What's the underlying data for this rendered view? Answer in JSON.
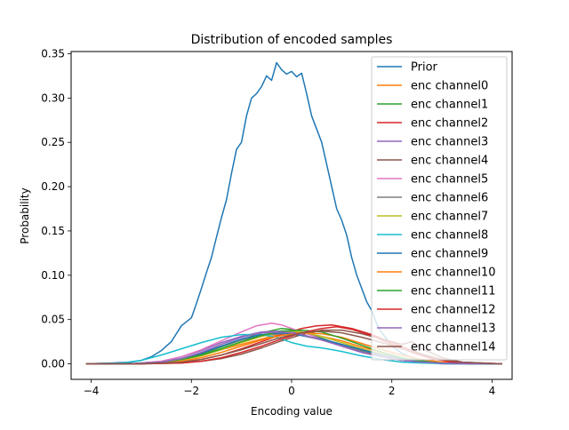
{
  "chart_data": {
    "type": "line",
    "title": "Distribution of encoded samples",
    "xlabel": "Encoding value",
    "ylabel": "Probability",
    "xlim": [
      -4.4,
      4.4
    ],
    "ylim": [
      -0.0175,
      0.3525
    ],
    "xticks": [
      -4,
      -2,
      0,
      2,
      4
    ],
    "xtick_labels": [
      "−4",
      "−2",
      "0",
      "2",
      "4"
    ],
    "yticks": [
      0.0,
      0.05,
      0.1,
      0.15,
      0.2,
      0.25,
      0.3,
      0.35
    ],
    "ytick_labels": [
      "0.00",
      "0.05",
      "0.10",
      "0.15",
      "0.20",
      "0.25",
      "0.30",
      "0.35"
    ],
    "grid": false,
    "legend_position": "upper right",
    "series": [
      {
        "name": "Prior",
        "color": "#1f77b4",
        "x": [
          -4.1,
          -3.6,
          -3.2,
          -3.0,
          -2.8,
          -2.6,
          -2.4,
          -2.2,
          -2.0,
          -1.9,
          -1.8,
          -1.7,
          -1.6,
          -1.5,
          -1.4,
          -1.3,
          -1.2,
          -1.1,
          -1.0,
          -0.9,
          -0.8,
          -0.7,
          -0.6,
          -0.5,
          -0.4,
          -0.3,
          -0.2,
          -0.1,
          0.0,
          0.1,
          0.2,
          0.3,
          0.4,
          0.5,
          0.6,
          0.7,
          0.8,
          0.9,
          1.0,
          1.1,
          1.2,
          1.3,
          1.4,
          1.5,
          1.6,
          1.7,
          1.8,
          1.9,
          2.0,
          2.2,
          2.4,
          2.6,
          2.8,
          3.0,
          3.2,
          3.6,
          4.2
        ],
        "y": [
          0.0,
          0.001,
          0.002,
          0.004,
          0.008,
          0.015,
          0.025,
          0.043,
          0.052,
          0.068,
          0.085,
          0.103,
          0.12,
          0.143,
          0.165,
          0.185,
          0.215,
          0.242,
          0.25,
          0.28,
          0.3,
          0.305,
          0.313,
          0.325,
          0.32,
          0.34,
          0.332,
          0.327,
          0.33,
          0.324,
          0.328,
          0.305,
          0.28,
          0.265,
          0.25,
          0.225,
          0.2,
          0.175,
          0.162,
          0.145,
          0.12,
          0.1,
          0.085,
          0.07,
          0.06,
          0.045,
          0.035,
          0.028,
          0.02,
          0.012,
          0.007,
          0.004,
          0.002,
          0.001,
          0.0005,
          0.0,
          0.0
        ]
      },
      {
        "name": "enc channel0",
        "color": "#ff7f0e",
        "x": [
          -4.1,
          -3.2,
          -2.6,
          -2.2,
          -1.8,
          -1.4,
          -1.0,
          -0.6,
          -0.2,
          0.0,
          0.2,
          0.6,
          1.0,
          1.4,
          1.8,
          2.2,
          2.6,
          3.0,
          3.6,
          4.2
        ],
        "y": [
          0.0,
          0.0,
          0.002,
          0.005,
          0.01,
          0.016,
          0.022,
          0.028,
          0.034,
          0.036,
          0.035,
          0.031,
          0.026,
          0.019,
          0.013,
          0.007,
          0.003,
          0.001,
          0.0,
          0.0
        ]
      },
      {
        "name": "enc channel1",
        "color": "#2ca02c",
        "x": [
          -4.1,
          -3.2,
          -2.6,
          -2.2,
          -1.8,
          -1.4,
          -1.0,
          -0.6,
          -0.2,
          0.0,
          0.2,
          0.6,
          1.0,
          1.4,
          1.8,
          2.2,
          2.6,
          3.0,
          3.6,
          4.2
        ],
        "y": [
          0.0,
          0.0,
          0.002,
          0.005,
          0.011,
          0.019,
          0.027,
          0.035,
          0.04,
          0.039,
          0.036,
          0.029,
          0.021,
          0.014,
          0.008,
          0.004,
          0.002,
          0.001,
          0.0,
          0.0
        ]
      },
      {
        "name": "enc channel2",
        "color": "#d62728",
        "x": [
          -4.1,
          -3.0,
          -2.2,
          -1.8,
          -1.4,
          -1.0,
          -0.6,
          -0.2,
          0.2,
          0.5,
          0.8,
          1.2,
          1.6,
          2.0,
          2.4,
          2.8,
          3.2,
          3.6,
          4.2
        ],
        "y": [
          0.0,
          0.0,
          0.002,
          0.005,
          0.01,
          0.017,
          0.025,
          0.033,
          0.04,
          0.043,
          0.044,
          0.04,
          0.033,
          0.024,
          0.015,
          0.007,
          0.003,
          0.001,
          0.0
        ]
      },
      {
        "name": "enc channel3",
        "color": "#9467bd",
        "x": [
          -4.1,
          -3.2,
          -2.6,
          -2.2,
          -1.8,
          -1.4,
          -1.0,
          -0.6,
          -0.2,
          0.0,
          0.2,
          0.6,
          1.0,
          1.4,
          1.8,
          2.2,
          2.6,
          3.0,
          3.6,
          4.2
        ],
        "y": [
          0.0,
          0.0,
          0.003,
          0.008,
          0.015,
          0.024,
          0.031,
          0.036,
          0.037,
          0.036,
          0.033,
          0.027,
          0.02,
          0.013,
          0.008,
          0.004,
          0.002,
          0.0,
          0.0,
          0.0
        ]
      },
      {
        "name": "enc channel4",
        "color": "#8c564b",
        "x": [
          -4.1,
          -3.0,
          -2.2,
          -1.8,
          -1.4,
          -1.0,
          -0.6,
          -0.2,
          0.2,
          0.6,
          1.0,
          1.4,
          1.8,
          2.2,
          2.4,
          2.6,
          3.0,
          3.4,
          4.2
        ],
        "y": [
          0.0,
          0.0,
          0.001,
          0.003,
          0.006,
          0.011,
          0.018,
          0.026,
          0.033,
          0.038,
          0.038,
          0.034,
          0.028,
          0.022,
          0.025,
          0.017,
          0.007,
          0.002,
          0.0
        ]
      },
      {
        "name": "enc channel5",
        "color": "#e377c2",
        "x": [
          -4.1,
          -3.2,
          -2.6,
          -2.2,
          -1.8,
          -1.4,
          -1.0,
          -0.7,
          -0.4,
          -0.2,
          0.0,
          0.3,
          0.6,
          1.0,
          1.4,
          1.8,
          2.2,
          2.6,
          3.0,
          3.6,
          4.2
        ],
        "y": [
          0.0,
          0.0,
          0.003,
          0.008,
          0.016,
          0.026,
          0.036,
          0.043,
          0.046,
          0.044,
          0.04,
          0.034,
          0.028,
          0.02,
          0.013,
          0.008,
          0.004,
          0.002,
          0.0,
          0.0,
          0.0
        ]
      },
      {
        "name": "enc channel6",
        "color": "#7f7f7f",
        "x": [
          -4.1,
          -3.2,
          -2.6,
          -2.2,
          -1.8,
          -1.4,
          -1.0,
          -0.6,
          -0.2,
          0.0,
          0.2,
          0.6,
          1.0,
          1.4,
          1.8,
          2.2,
          2.6,
          3.0,
          3.6,
          4.2
        ],
        "y": [
          0.0,
          0.0,
          0.002,
          0.006,
          0.012,
          0.02,
          0.027,
          0.032,
          0.034,
          0.034,
          0.032,
          0.027,
          0.021,
          0.015,
          0.009,
          0.005,
          0.002,
          0.001,
          0.0,
          0.0
        ]
      },
      {
        "name": "enc channel7",
        "color": "#bcbd22",
        "x": [
          -4.1,
          -3.2,
          -2.6,
          -2.2,
          -1.8,
          -1.4,
          -1.0,
          -0.6,
          -0.2,
          0.0,
          0.2,
          0.6,
          1.0,
          1.4,
          1.8,
          2.2,
          2.6,
          3.0,
          3.6,
          4.2
        ],
        "y": [
          0.0,
          0.0,
          0.001,
          0.004,
          0.009,
          0.016,
          0.024,
          0.031,
          0.036,
          0.037,
          0.036,
          0.031,
          0.024,
          0.017,
          0.011,
          0.006,
          0.003,
          0.001,
          0.0,
          0.0
        ]
      },
      {
        "name": "enc channel8",
        "color": "#17becf",
        "x": [
          -4.1,
          -3.4,
          -3.0,
          -2.6,
          -2.2,
          -1.8,
          -1.4,
          -1.0,
          -0.6,
          -0.3,
          0.0,
          0.3,
          0.6,
          1.0,
          1.4,
          1.8,
          2.2,
          2.6,
          3.2,
          4.2
        ],
        "y": [
          0.0,
          0.001,
          0.004,
          0.01,
          0.017,
          0.024,
          0.03,
          0.033,
          0.033,
          0.03,
          0.024,
          0.02,
          0.018,
          0.014,
          0.009,
          0.005,
          0.002,
          0.001,
          0.0,
          0.0
        ]
      },
      {
        "name": "enc channel9",
        "color": "#1f77b4",
        "x": [
          -4.1,
          -3.2,
          -2.6,
          -2.2,
          -1.8,
          -1.4,
          -1.0,
          -0.6,
          -0.2,
          0.0,
          0.2,
          0.6,
          1.0,
          1.4,
          1.8,
          2.2,
          2.6,
          3.0,
          3.6,
          4.2
        ],
        "y": [
          0.0,
          0.0,
          0.002,
          0.006,
          0.012,
          0.02,
          0.028,
          0.033,
          0.035,
          0.034,
          0.032,
          0.028,
          0.022,
          0.016,
          0.01,
          0.006,
          0.003,
          0.001,
          0.0,
          0.0
        ]
      },
      {
        "name": "enc channel10",
        "color": "#ff7f0e",
        "x": [
          -4.1,
          -3.2,
          -2.6,
          -2.2,
          -1.8,
          -1.4,
          -1.0,
          -0.6,
          -0.2,
          0.2,
          0.6,
          1.0,
          1.4,
          1.8,
          2.2,
          2.6,
          3.0,
          3.4,
          4.2
        ],
        "y": [
          0.0,
          0.0,
          0.001,
          0.003,
          0.007,
          0.013,
          0.02,
          0.027,
          0.032,
          0.035,
          0.034,
          0.03,
          0.023,
          0.016,
          0.01,
          0.005,
          0.002,
          0.001,
          0.0
        ]
      },
      {
        "name": "enc channel11",
        "color": "#2ca02c",
        "x": [
          -4.1,
          -3.2,
          -2.6,
          -2.2,
          -1.8,
          -1.4,
          -1.0,
          -0.6,
          -0.2,
          0.2,
          0.6,
          1.0,
          1.4,
          1.8,
          2.2,
          2.6,
          3.0,
          3.6,
          4.2
        ],
        "y": [
          0.0,
          0.0,
          0.002,
          0.005,
          0.01,
          0.017,
          0.025,
          0.032,
          0.037,
          0.038,
          0.036,
          0.029,
          0.021,
          0.013,
          0.007,
          0.003,
          0.001,
          0.0,
          0.0
        ]
      },
      {
        "name": "enc channel12",
        "color": "#d62728",
        "x": [
          -4.1,
          -3.0,
          -2.2,
          -1.8,
          -1.4,
          -1.0,
          -0.6,
          -0.2,
          0.2,
          0.6,
          0.9,
          1.2,
          1.6,
          2.0,
          2.4,
          2.8,
          3.2,
          3.6,
          4.2
        ],
        "y": [
          0.0,
          0.0,
          0.001,
          0.003,
          0.007,
          0.013,
          0.02,
          0.028,
          0.035,
          0.04,
          0.042,
          0.039,
          0.032,
          0.022,
          0.013,
          0.006,
          0.002,
          0.001,
          0.0
        ]
      },
      {
        "name": "enc channel13",
        "color": "#9467bd",
        "x": [
          -4.1,
          -3.2,
          -2.6,
          -2.2,
          -1.8,
          -1.4,
          -1.0,
          -0.6,
          -0.2,
          0.0,
          0.2,
          0.6,
          1.0,
          1.4,
          1.8,
          2.2,
          2.6,
          3.0,
          3.6,
          4.2
        ],
        "y": [
          0.0,
          0.0,
          0.002,
          0.006,
          0.013,
          0.022,
          0.03,
          0.035,
          0.036,
          0.035,
          0.033,
          0.027,
          0.02,
          0.013,
          0.008,
          0.004,
          0.002,
          0.001,
          0.0,
          0.0
        ]
      },
      {
        "name": "enc channel14",
        "color": "#8c564b",
        "x": [
          -4.1,
          -3.0,
          -2.2,
          -1.8,
          -1.4,
          -1.0,
          -0.6,
          -0.2,
          0.2,
          0.6,
          1.0,
          1.4,
          1.8,
          2.2,
          2.6,
          3.0,
          3.4,
          4.2
        ],
        "y": [
          0.0,
          0.0,
          0.002,
          0.005,
          0.01,
          0.016,
          0.023,
          0.03,
          0.035,
          0.037,
          0.035,
          0.03,
          0.024,
          0.017,
          0.011,
          0.005,
          0.002,
          0.0
        ]
      }
    ]
  }
}
